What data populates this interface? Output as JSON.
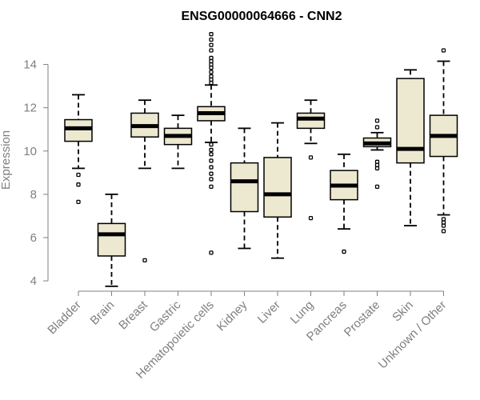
{
  "chart_data": {
    "type": "boxplot",
    "title": "ENSG00000064666 - CNN2",
    "xlabel": "",
    "ylabel": "Expression",
    "ylim": [
      3.5,
      15.6
    ],
    "yticks": [
      4,
      6,
      8,
      10,
      12,
      14
    ],
    "categories": [
      "Bladder",
      "Brain",
      "Breast",
      "Gastric",
      "Hematopoietic cells",
      "Kidney",
      "Liver",
      "Lung",
      "Pancreas",
      "Prostate",
      "Skin",
      "Unknown / Other"
    ],
    "boxes": [
      {
        "name": "Bladder",
        "whisker_low": 9.2,
        "q1": 10.45,
        "median": 11.05,
        "q3": 11.45,
        "whisker_high": 12.6,
        "outliers": [
          8.9,
          8.45,
          7.65
        ]
      },
      {
        "name": "Brain",
        "whisker_low": 3.75,
        "q1": 5.15,
        "median": 6.15,
        "q3": 6.65,
        "whisker_high": 8.0,
        "outliers": []
      },
      {
        "name": "Breast",
        "whisker_low": 9.2,
        "q1": 10.65,
        "median": 11.15,
        "q3": 11.75,
        "whisker_high": 12.35,
        "outliers": [
          4.95
        ]
      },
      {
        "name": "Gastric",
        "whisker_low": 9.2,
        "q1": 10.3,
        "median": 10.7,
        "q3": 11.05,
        "whisker_high": 11.65,
        "outliers": []
      },
      {
        "name": "Hematopoietic cells",
        "whisker_low": 10.4,
        "q1": 11.4,
        "median": 11.75,
        "q3": 12.05,
        "whisker_high": 13.05,
        "outliers": [
          15.4,
          15.15,
          14.9,
          14.65,
          14.3,
          14.15,
          14.0,
          13.85,
          13.65,
          13.45,
          13.3,
          13.15,
          10.3,
          10.05,
          9.85,
          9.55,
          9.25,
          8.95,
          8.7,
          8.35,
          5.3
        ]
      },
      {
        "name": "Kidney",
        "whisker_low": 5.5,
        "q1": 7.2,
        "median": 8.6,
        "q3": 9.45,
        "whisker_high": 11.05,
        "outliers": []
      },
      {
        "name": "Liver",
        "whisker_low": 5.05,
        "q1": 6.95,
        "median": 8.0,
        "q3": 9.7,
        "whisker_high": 11.3,
        "outliers": []
      },
      {
        "name": "Lung",
        "whisker_low": 10.35,
        "q1": 11.05,
        "median": 11.5,
        "q3": 11.75,
        "whisker_high": 12.35,
        "outliers": [
          9.7,
          6.9
        ]
      },
      {
        "name": "Pancreas",
        "whisker_low": 6.4,
        "q1": 7.75,
        "median": 8.4,
        "q3": 9.1,
        "whisker_high": 9.85,
        "outliers": [
          5.35
        ]
      },
      {
        "name": "Prostate",
        "whisker_low": 10.05,
        "q1": 10.2,
        "median": 10.35,
        "q3": 10.6,
        "whisker_high": 10.85,
        "outliers": [
          11.4,
          11.1,
          9.5,
          9.35,
          9.2,
          8.35
        ]
      },
      {
        "name": "Skin",
        "whisker_low": 6.55,
        "q1": 9.45,
        "median": 10.1,
        "q3": 13.35,
        "whisker_high": 13.75,
        "outliers": []
      },
      {
        "name": "Unknown / Other",
        "whisker_low": 7.05,
        "q1": 9.75,
        "median": 10.7,
        "q3": 11.65,
        "whisker_high": 14.15,
        "outliers": [
          14.65,
          6.85,
          6.7,
          6.55,
          6.3
        ]
      }
    ],
    "colors": {
      "box_fill": "#ede8d0",
      "axis": "#7f7f7f",
      "ink": "#000000"
    }
  }
}
